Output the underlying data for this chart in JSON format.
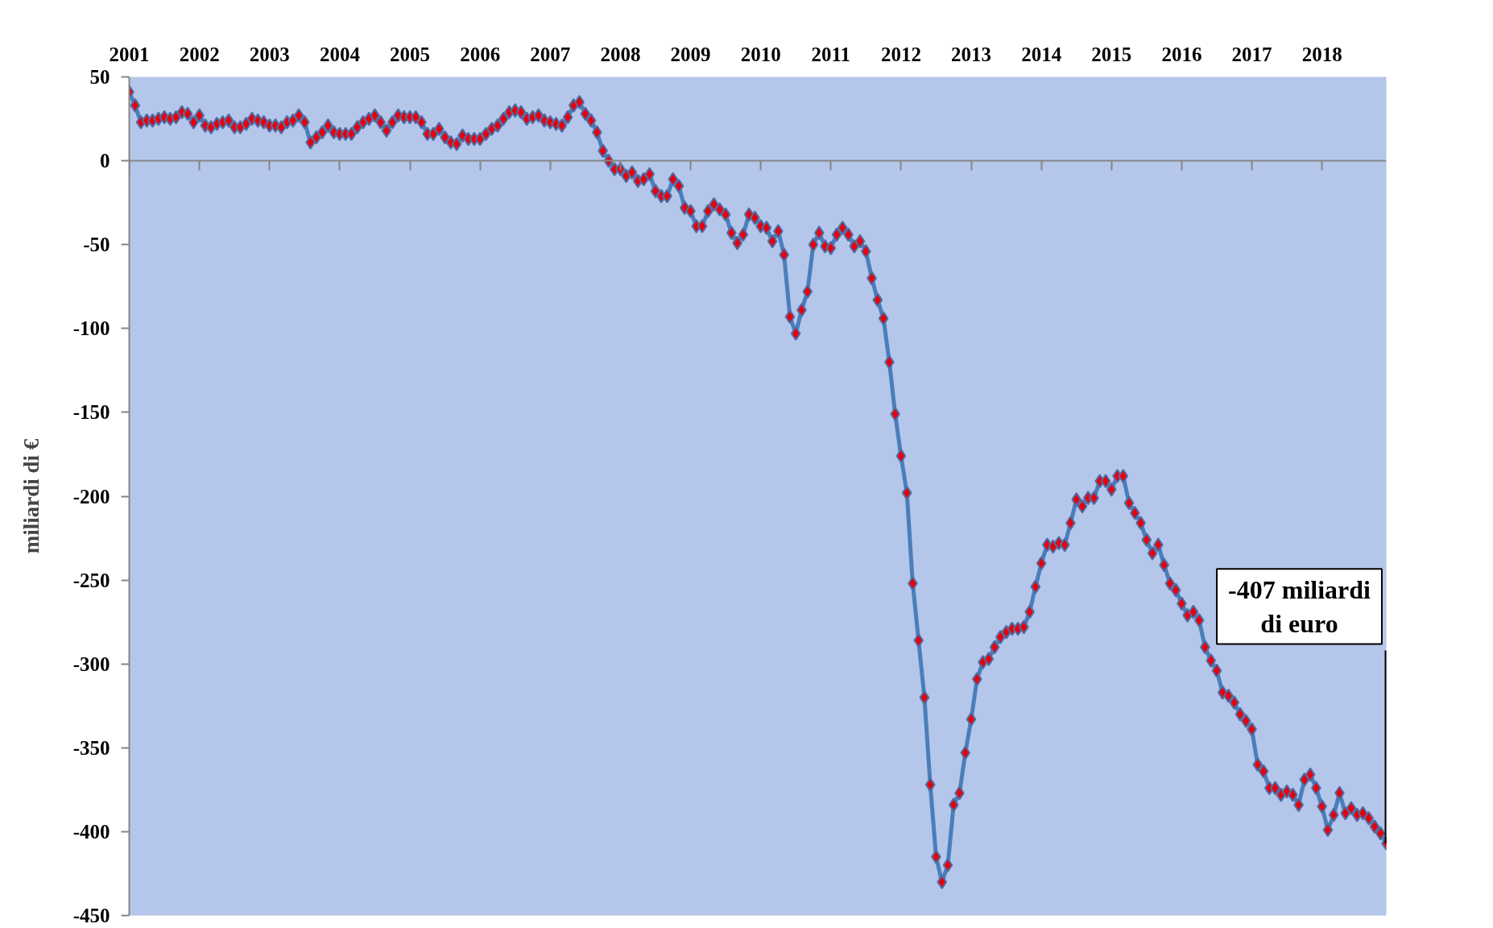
{
  "chart_data": {
    "type": "line",
    "ylabel": "miliardi di €",
    "x": [
      "2001-01",
      "2001-02",
      "2001-03",
      "2001-04",
      "2001-05",
      "2001-06",
      "2001-07",
      "2001-08",
      "2001-09",
      "2001-10",
      "2001-11",
      "2001-12",
      "2002-01",
      "2002-02",
      "2002-03",
      "2002-04",
      "2002-05",
      "2002-06",
      "2002-07",
      "2002-08",
      "2002-09",
      "2002-10",
      "2002-11",
      "2002-12",
      "2003-01",
      "2003-02",
      "2003-03",
      "2003-04",
      "2003-05",
      "2003-06",
      "2003-07",
      "2003-08",
      "2003-09",
      "2003-10",
      "2003-11",
      "2003-12",
      "2004-01",
      "2004-02",
      "2004-03",
      "2004-04",
      "2004-05",
      "2004-06",
      "2004-07",
      "2004-08",
      "2004-09",
      "2004-10",
      "2004-11",
      "2004-12",
      "2005-01",
      "2005-02",
      "2005-03",
      "2005-04",
      "2005-05",
      "2005-06",
      "2005-07",
      "2005-08",
      "2005-09",
      "2005-10",
      "2005-11",
      "2005-12",
      "2006-01",
      "2006-02",
      "2006-03",
      "2006-04",
      "2006-05",
      "2006-06",
      "2006-07",
      "2006-08",
      "2006-09",
      "2006-10",
      "2006-11",
      "2006-12",
      "2007-01",
      "2007-02",
      "2007-03",
      "2007-04",
      "2007-05",
      "2007-06",
      "2007-07",
      "2007-08",
      "2007-09",
      "2007-10",
      "2007-11",
      "2007-12",
      "2008-01",
      "2008-02",
      "2008-03",
      "2008-04",
      "2008-05",
      "2008-06",
      "2008-07",
      "2008-08",
      "2008-09",
      "2008-10",
      "2008-11",
      "2008-12",
      "2009-01",
      "2009-02",
      "2009-03",
      "2009-04",
      "2009-05",
      "2009-06",
      "2009-07",
      "2009-08",
      "2009-09",
      "2009-10",
      "2009-11",
      "2009-12",
      "2010-01",
      "2010-02",
      "2010-03",
      "2010-04",
      "2010-05",
      "2010-06",
      "2010-07",
      "2010-08",
      "2010-09",
      "2010-10",
      "2010-11",
      "2010-12",
      "2011-01",
      "2011-02",
      "2011-03",
      "2011-04",
      "2011-05",
      "2011-06",
      "2011-07",
      "2011-08",
      "2011-09",
      "2011-10",
      "2011-11",
      "2011-12",
      "2012-01",
      "2012-02",
      "2012-03",
      "2012-04",
      "2012-05",
      "2012-06",
      "2012-07",
      "2012-08",
      "2012-09",
      "2012-10",
      "2012-11",
      "2012-12",
      "2013-01",
      "2013-02",
      "2013-03",
      "2013-04",
      "2013-05",
      "2013-06",
      "2013-07",
      "2013-08",
      "2013-09",
      "2013-10",
      "2013-11",
      "2013-12",
      "2014-01",
      "2014-02",
      "2014-03",
      "2014-04",
      "2014-05",
      "2014-06",
      "2014-07",
      "2014-08",
      "2014-09",
      "2014-10",
      "2014-11",
      "2014-12",
      "2015-01",
      "2015-02",
      "2015-03",
      "2015-04",
      "2015-05",
      "2015-06",
      "2015-07",
      "2015-08",
      "2015-09",
      "2015-10",
      "2015-11",
      "2015-12",
      "2016-01",
      "2016-02",
      "2016-03",
      "2016-04",
      "2016-05",
      "2016-06",
      "2016-07",
      "2016-08",
      "2016-09",
      "2016-10",
      "2016-11",
      "2016-12",
      "2017-01",
      "2017-02",
      "2017-03",
      "2017-04",
      "2017-05",
      "2017-06",
      "2017-07",
      "2017-08",
      "2017-09",
      "2017-10",
      "2017-11",
      "2017-12",
      "2018-01",
      "2018-02",
      "2018-03",
      "2018-04",
      "2018-05",
      "2018-06",
      "2018-07",
      "2018-08",
      "2018-09",
      "2018-10",
      "2018-11",
      "2018-12"
    ],
    "series": [
      {
        "color": "#4a7ebb",
        "values": [
          41,
          33,
          23,
          24,
          24,
          25,
          26,
          25,
          26,
          29,
          28,
          23,
          27,
          21,
          20,
          22,
          23,
          24,
          20,
          20,
          22,
          25,
          24,
          23,
          21,
          21,
          20,
          23,
          24,
          27,
          23,
          11,
          14,
          17,
          21,
          17,
          16,
          16,
          16,
          20,
          23,
          25,
          27,
          23,
          18,
          23,
          27,
          26,
          26,
          26,
          23,
          16,
          16,
          19,
          14,
          11,
          10,
          15,
          13,
          13,
          13,
          16,
          19,
          21,
          25,
          29,
          30,
          29,
          25,
          26,
          27,
          24,
          23,
          22,
          21,
          26,
          33,
          35,
          28,
          24,
          17,
          6,
          0,
          -5,
          -5,
          -9,
          -7,
          -12,
          -11,
          -8,
          -18,
          -21,
          -21,
          -11,
          -15,
          -28,
          -30,
          -39,
          -39,
          -30,
          -26,
          -29,
          -32,
          -43,
          -49,
          -44,
          -32,
          -34,
          -39,
          -40,
          -48,
          -42,
          -56,
          -93,
          -103,
          -89,
          -78,
          -50,
          -43,
          -51,
          -52,
          -44,
          -40,
          -44,
          -51,
          -48,
          -54,
          -70,
          -83,
          -94,
          -120,
          -151,
          -176,
          -198,
          -252,
          -286,
          -320,
          -372,
          -415,
          -430,
          -420,
          -384,
          -377,
          -353,
          -333,
          -309,
          -299,
          -297,
          -290,
          -284,
          -281,
          -279,
          -279,
          -278,
          -269,
          -254,
          -240,
          -229,
          -230,
          -228,
          -229,
          -216,
          -202,
          -206,
          -201,
          -201,
          -191,
          -191,
          -196,
          -188,
          -188,
          -204,
          -210,
          -216,
          -226,
          -234,
          -229,
          -241,
          -252,
          -256,
          -264,
          -271,
          -269,
          -274,
          -290,
          -298,
          -304,
          -317,
          -319,
          -323,
          -330,
          -334,
          -339,
          -360,
          -364,
          -374,
          -374,
          -378,
          -376,
          -378,
          -384,
          -369,
          -366,
          -374,
          -385,
          -399,
          -390,
          -377,
          -389,
          -386,
          -390,
          -389,
          -392,
          -397,
          -401,
          -407
        ]
      }
    ],
    "xlim": [
      "2001-01",
      "2018-12"
    ],
    "xticks": [
      "2001",
      "2002",
      "2003",
      "2004",
      "2005",
      "2006",
      "2007",
      "2008",
      "2009",
      "2010",
      "2011",
      "2012",
      "2013",
      "2014",
      "2015",
      "2016",
      "2017",
      "2018"
    ],
    "ylim": [
      -450,
      50
    ],
    "yticks": [
      50,
      0,
      -50,
      -100,
      -150,
      -200,
      -250,
      -300,
      -350,
      -400,
      -450
    ],
    "marker": "diamond",
    "line_style": "solid",
    "annotations": [
      {
        "text": "-407 miliardi di euro",
        "x": "2018-12",
        "y": -407
      }
    ]
  }
}
